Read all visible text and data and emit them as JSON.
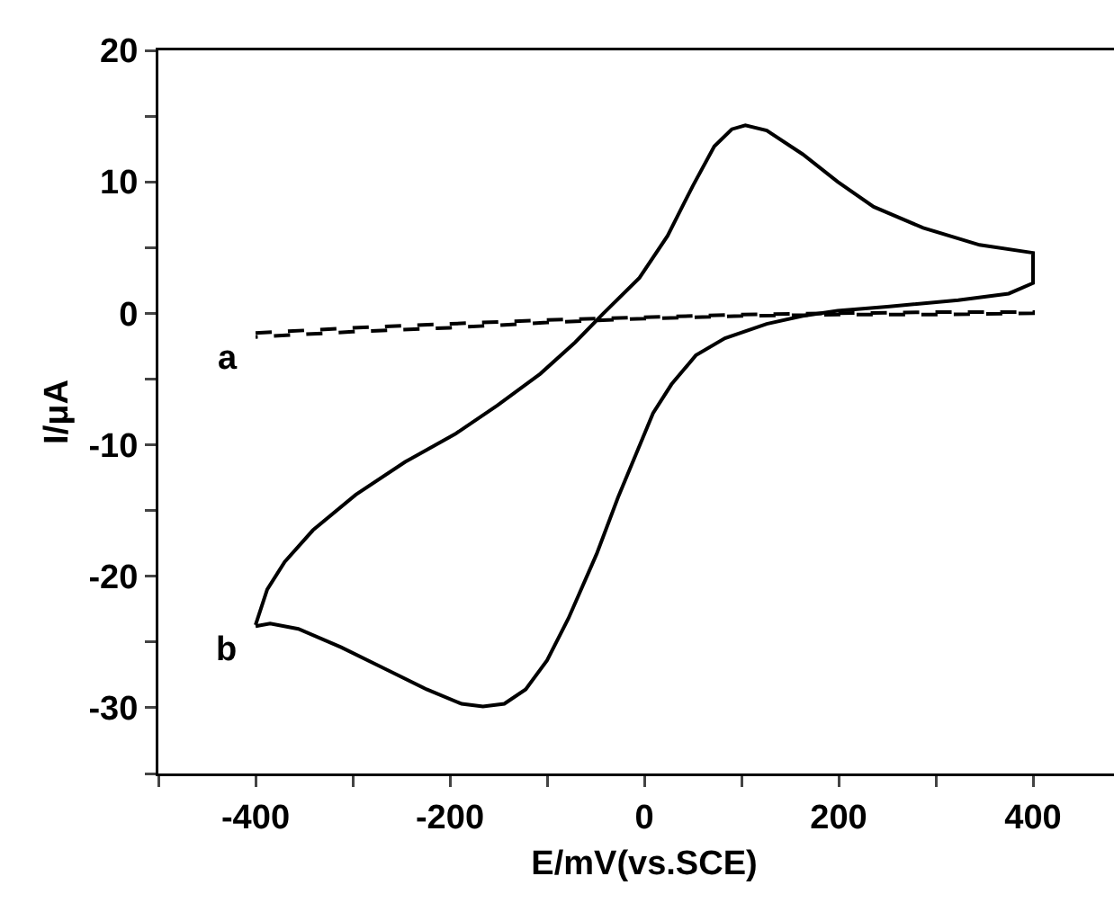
{
  "chart_data": {
    "type": "line",
    "xlabel": "E/mV(vs.SCE)",
    "ylabel": "I/μA",
    "xlim": [
      -500,
      500
    ],
    "ylim": [
      -35,
      20
    ],
    "xticks": [
      {
        "value": -500,
        "label": null
      },
      -400,
      {
        "value": -300,
        "label": null
      },
      -200,
      {
        "value": -100,
        "label": null
      },
      0,
      {
        "value": 100,
        "label": null
      },
      200,
      {
        "value": 300,
        "label": null
      },
      400
    ],
    "yticks": [
      {
        "value": -35,
        "label": null
      },
      -30,
      {
        "value": -25,
        "label": null
      },
      -20,
      {
        "value": -15,
        "label": null
      },
      -10,
      {
        "value": -5,
        "label": null
      },
      0,
      {
        "value": 5,
        "label": null
      },
      10,
      {
        "value": 15,
        "label": null
      },
      20
    ],
    "grid": false,
    "legend": false,
    "marker": "none",
    "series": [
      {
        "name": "a",
        "color": "#000000",
        "line_style": "dashed",
        "x": [
          -400,
          -300,
          -200,
          -100,
          0,
          100,
          200,
          300,
          400,
          400,
          300,
          200,
          100,
          0,
          -100,
          -200,
          -300,
          -400
        ],
        "values": [
          -1.5,
          -1.1,
          -0.8,
          -0.5,
          -0.3,
          -0.1,
          0.0,
          0.1,
          0.1,
          0.0,
          -0.1,
          -0.1,
          -0.2,
          -0.4,
          -0.7,
          -1.1,
          -1.4,
          -1.8
        ]
      },
      {
        "name": "b",
        "color": "#000000",
        "line_style": "solid",
        "x": [
          -400,
          -388,
          -370,
          -341,
          -297,
          -246,
          -195,
          -151,
          -107,
          -71,
          -42,
          -5,
          24,
          50,
          72,
          90,
          104,
          126,
          163,
          199,
          236,
          287,
          345,
          400,
          400,
          375,
          323,
          250,
          199,
          163,
          126,
          83,
          53,
          28,
          9,
          -9,
          -27,
          -49,
          -78,
          -100,
          -122,
          -144,
          -166,
          -188,
          -224,
          -268,
          -312,
          -356,
          -385,
          -400
        ],
        "values": [
          -23.7,
          -21.0,
          -18.9,
          -16.5,
          -13.8,
          -11.3,
          -9.2,
          -7.0,
          -4.6,
          -2.2,
          0,
          2.7,
          5.9,
          9.7,
          12.7,
          14.0,
          14.3,
          13.9,
          12.1,
          10.0,
          8.1,
          6.5,
          5.2,
          4.6,
          2.3,
          1.5,
          1.0,
          0.5,
          0.2,
          -0.2,
          -0.8,
          -1.9,
          -3.2,
          -5.4,
          -7.6,
          -10.8,
          -14.0,
          -18.3,
          -23.2,
          -26.4,
          -28.6,
          -29.7,
          -29.9,
          -29.7,
          -28.6,
          -27.0,
          -25.4,
          -24.0,
          -23.6,
          -23.8
        ]
      }
    ]
  }
}
